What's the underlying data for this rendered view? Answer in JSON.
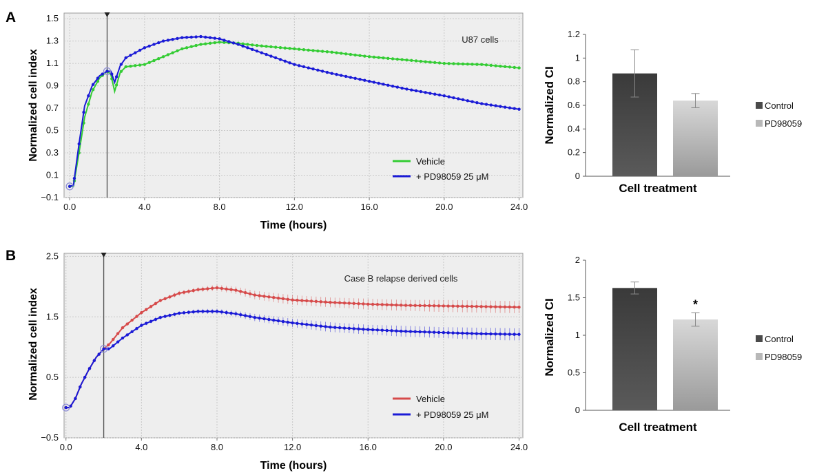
{
  "panels": [
    {
      "letter": "A",
      "subtitle": "U87 cells"
    },
    {
      "letter": "B",
      "subtitle": "Case B relapse derived cells"
    }
  ],
  "colors": {
    "vehicle_a": "#33cc33",
    "vehicle_b": "#d64a4a",
    "treated": "#1a1ad6",
    "control_bar": "#4a4a4a",
    "pd_bar": "#b8b8b8",
    "plot_bg": "#eeeeee"
  },
  "chart_data": [
    {
      "type": "line",
      "panel": "A",
      "title": "U87 cells",
      "xlabel": "Time (hours)",
      "ylabel": "Normalized cell index",
      "xlim": [
        -0.3,
        24.2
      ],
      "ylim": [
        -0.1,
        1.55
      ],
      "x_ticks": [
        "0.0",
        "4.0",
        "8.0",
        "12.0",
        "16.0",
        "20.0",
        "24.0"
      ],
      "y_ticks": [
        "−0.1",
        "0.1",
        "0.3",
        "0.5",
        "0.7",
        "0.9",
        "1.1",
        "1.3",
        "1.5"
      ],
      "marker_time": 2,
      "grid": true,
      "legend": "bottom-right",
      "series": [
        {
          "name": "Vehicle",
          "x": [
            0,
            0.2,
            0.5,
            0.8,
            1.2,
            1.6,
            2,
            2.2,
            2.4,
            2.7,
            3,
            4,
            5,
            6,
            7,
            8,
            9,
            10,
            12,
            14,
            16,
            18,
            20,
            22,
            24
          ],
          "y": [
            0,
            0,
            0.3,
            0.62,
            0.85,
            0.97,
            1.03,
            1.0,
            0.85,
            1.02,
            1.07,
            1.09,
            1.16,
            1.23,
            1.27,
            1.29,
            1.28,
            1.26,
            1.23,
            1.2,
            1.16,
            1.13,
            1.1,
            1.09,
            1.06
          ]
        },
        {
          "name": "+ PD98059 25 μM",
          "x": [
            0,
            0.2,
            0.5,
            0.8,
            1.2,
            1.6,
            2,
            2.2,
            2.4,
            2.7,
            3,
            4,
            5,
            6,
            7,
            8,
            9,
            10,
            12,
            14,
            16,
            18,
            20,
            22,
            24
          ],
          "y": [
            0,
            0.01,
            0.38,
            0.72,
            0.9,
            0.99,
            1.03,
            1.03,
            0.93,
            1.08,
            1.15,
            1.24,
            1.3,
            1.33,
            1.34,
            1.32,
            1.27,
            1.21,
            1.09,
            1.01,
            0.94,
            0.87,
            0.81,
            0.74,
            0.69
          ]
        }
      ]
    },
    {
      "type": "bar",
      "panel": "A",
      "xlabel": "Cell treatment",
      "ylabel": "Normalized CI",
      "ylim": [
        0,
        1.2
      ],
      "y_ticks": [
        "0",
        "0.2",
        "0.4",
        "0.6",
        "0.8",
        "1",
        "1.2"
      ],
      "categories": [
        "Control",
        "PD98059"
      ],
      "values": [
        0.87,
        0.64
      ],
      "errors": [
        0.2,
        0.06
      ],
      "annotations": [
        "",
        ""
      ]
    },
    {
      "type": "line",
      "panel": "B",
      "title": "Case B relapse derived cells",
      "xlabel": "Time (hours)",
      "ylabel": "Normalized cell index",
      "xlim": [
        -0.1,
        24.2
      ],
      "ylim": [
        -0.5,
        2.55
      ],
      "x_ticks": [
        "0.0",
        "4.0",
        "8.0",
        "12.0",
        "16.0",
        "20.0",
        "24.0"
      ],
      "y_ticks": [
        "−0.5",
        "0.5",
        "1.5",
        "2.5"
      ],
      "marker_time": 2,
      "grid": true,
      "legend": "bottom-right",
      "series": [
        {
          "name": "Vehicle",
          "x": [
            0,
            0.2,
            0.5,
            0.8,
            1.2,
            1.6,
            2,
            2.3,
            3,
            4,
            5,
            6,
            7,
            8,
            9,
            10,
            12,
            14,
            16,
            18,
            20,
            22,
            24
          ],
          "y": [
            0,
            0,
            0.15,
            0.38,
            0.62,
            0.83,
            0.97,
            1.05,
            1.32,
            1.57,
            1.77,
            1.89,
            1.95,
            1.98,
            1.94,
            1.86,
            1.78,
            1.74,
            1.71,
            1.69,
            1.68,
            1.67,
            1.66
          ],
          "err": [
            0,
            0,
            0,
            0,
            0,
            0,
            0,
            0.02,
            0.02,
            0.03,
            0.03,
            0.04,
            0.04,
            0.05,
            0.06,
            0.07,
            0.08,
            0.08,
            0.09,
            0.09,
            0.1,
            0.1,
            0.1
          ]
        },
        {
          "name": "+ PD98059 25 μM",
          "x": [
            0,
            0.2,
            0.5,
            0.8,
            1.2,
            1.6,
            2,
            2.3,
            3,
            4,
            5,
            6,
            7,
            8,
            9,
            10,
            12,
            14,
            16,
            18,
            20,
            22,
            24
          ],
          "y": [
            0,
            0,
            0.15,
            0.38,
            0.62,
            0.83,
            0.97,
            0.97,
            1.15,
            1.36,
            1.49,
            1.56,
            1.59,
            1.59,
            1.55,
            1.49,
            1.4,
            1.33,
            1.29,
            1.26,
            1.24,
            1.22,
            1.21
          ],
          "err": [
            0,
            0,
            0,
            0,
            0,
            0,
            0,
            0.02,
            0.02,
            0.03,
            0.03,
            0.03,
            0.04,
            0.04,
            0.05,
            0.06,
            0.07,
            0.08,
            0.08,
            0.09,
            0.09,
            0.1,
            0.1
          ]
        }
      ]
    },
    {
      "type": "bar",
      "panel": "B",
      "xlabel": "Cell treatment",
      "ylabel": "Normalized CI",
      "ylim": [
        0,
        2
      ],
      "y_ticks": [
        "0",
        "0.5",
        "1",
        "1.5",
        "2"
      ],
      "categories": [
        "Control",
        "PD98059"
      ],
      "values": [
        1.63,
        1.21
      ],
      "errors": [
        0.08,
        0.09
      ],
      "annotations": [
        "",
        "*"
      ]
    }
  ]
}
